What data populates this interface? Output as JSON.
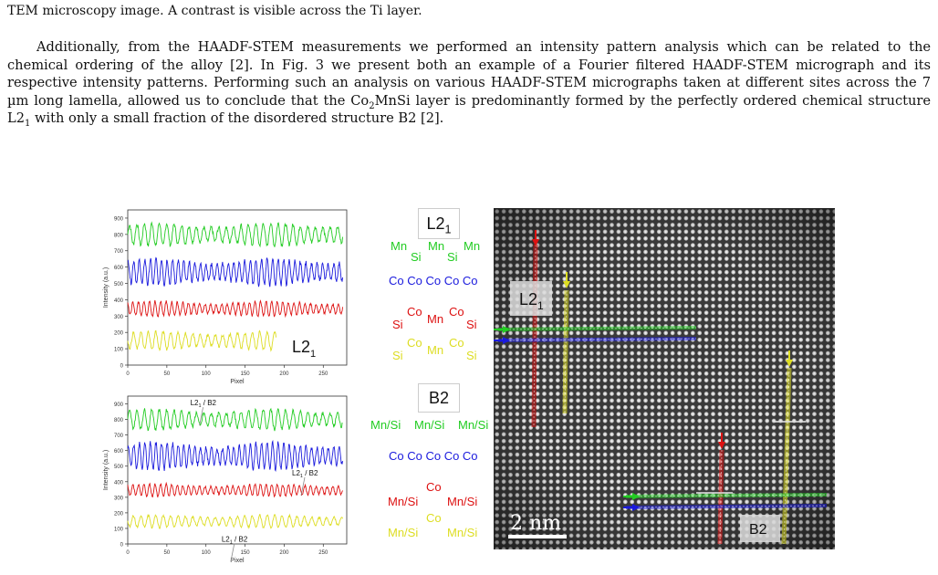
{
  "caption_tail": "TEM microscopy image. A contrast is visible across the Ti layer.",
  "paragraph": {
    "p1": "Additionally, from the HAADF-STEM measurements we performed an intensity pattern analysis which can be related to the chemical ordering of the alloy [2]. In Fig. 3 we present both an example of a Fourier filtered HAADF-STEM micrograph and its respective intensity patterns. Performing such an analysis on various HAADF-STEM micrographs taken at different sites across the 7 µm long lamella, allowed us to conclude that the Co",
    "sub1": "2",
    "p2": "MnSi layer is predominantly formed by the perfectly ordered chemical structure L2",
    "sub2": "1",
    "p3": " with only a small fraction of the disordered structure B2 [2]."
  },
  "colors": {
    "green": "#22cc22",
    "blue": "#1a1add",
    "red": "#dd1111",
    "yellow": "#dddd22"
  },
  "chart_data": [
    {
      "type": "line",
      "xlabel": "Pixel",
      "ylabel": "Intensity (a.u.)",
      "xlim": [
        0,
        280
      ],
      "ylim": [
        0,
        950
      ],
      "xticks": [
        "0",
        "50",
        "100",
        "150",
        "200",
        "250"
      ],
      "yticks": [
        "0",
        "100",
        "200",
        "300",
        "400",
        "500",
        "600",
        "700",
        "800",
        "900"
      ],
      "series": [
        {
          "color": "green",
          "x_range": [
            0,
            275
          ],
          "mean": 800,
          "amplitude": 70,
          "period": 9.5
        },
        {
          "color": "blue",
          "x_range": [
            0,
            275
          ],
          "mean": 570,
          "amplitude": 80,
          "period": 7.1
        },
        {
          "color": "red",
          "x_range": [
            0,
            275
          ],
          "mean": 345,
          "amplitude": 45,
          "period": 7.1
        },
        {
          "color": "yellow",
          "x_range": [
            0,
            190
          ],
          "mean": 150,
          "amplitude": 55,
          "period": 9.5
        }
      ],
      "annotation": {
        "text": "L2",
        "sub": "1"
      }
    },
    {
      "type": "line",
      "xlabel": "Pixel",
      "ylabel": "Intensity (a.u.)",
      "xlim": [
        0,
        280
      ],
      "ylim": [
        0,
        950
      ],
      "xticks": [
        "0",
        "50",
        "100",
        "150",
        "200",
        "250"
      ],
      "yticks": [
        "0",
        "100",
        "200",
        "300",
        "400",
        "500",
        "600",
        "700",
        "800",
        "900"
      ],
      "series": [
        {
          "color": "green",
          "x_range": [
            0,
            275
          ],
          "mean": 800,
          "amplitude": 65,
          "period": 9.5
        },
        {
          "color": "blue",
          "x_range": [
            0,
            275
          ],
          "mean": 565,
          "amplitude": 85,
          "period": 7.1
        },
        {
          "color": "red",
          "x_range": [
            0,
            275
          ],
          "mean": 345,
          "amplitude": 40,
          "period": 7.1
        },
        {
          "color": "yellow",
          "x_range": [
            0,
            275
          ],
          "mean": 145,
          "amplitude": 40,
          "period": 9.5
        }
      ],
      "annotations": [
        {
          "text": "L2",
          "sub": "1",
          "sep": "/",
          "text2": "B2",
          "x": 80,
          "y": 890
        },
        {
          "text": "L2",
          "sub": "1",
          "sep": "/",
          "text2": "B2",
          "x": 210,
          "y": 440
        },
        {
          "text": "L2",
          "sub": "1",
          "sep": "/",
          "text2": "B2",
          "x": 120,
          "y": 15
        }
      ]
    }
  ],
  "diagram_L21": {
    "title": "L2",
    "title_sub": "1",
    "row1": [
      "Mn",
      "Mn",
      "Mn"
    ],
    "row1b": [
      "Si",
      "Si"
    ],
    "row2": "Co Co Co Co Co",
    "row3_si": [
      "Si",
      "Si"
    ],
    "row3_co": [
      "Co",
      "Co"
    ],
    "row3_mn": "Mn",
    "row4_si": [
      "Si",
      "Si"
    ],
    "row4_co": [
      "Co",
      "Co"
    ],
    "row4_mn": "Mn"
  },
  "diagram_B2": {
    "title": "B2",
    "row1": [
      "Mn/Si",
      "Mn/Si",
      "Mn/Si"
    ],
    "row2": "Co Co Co Co Co",
    "row3": [
      "Mn/Si",
      "Mn/Si"
    ],
    "row3_co": "Co",
    "row4": [
      "Mn/Si",
      "Mn/Si"
    ],
    "row4_co": "Co"
  },
  "micrograph": {
    "label_L21": "L2",
    "label_L21_sub": "1",
    "label_B2": "B2",
    "scale": "2 nm"
  }
}
